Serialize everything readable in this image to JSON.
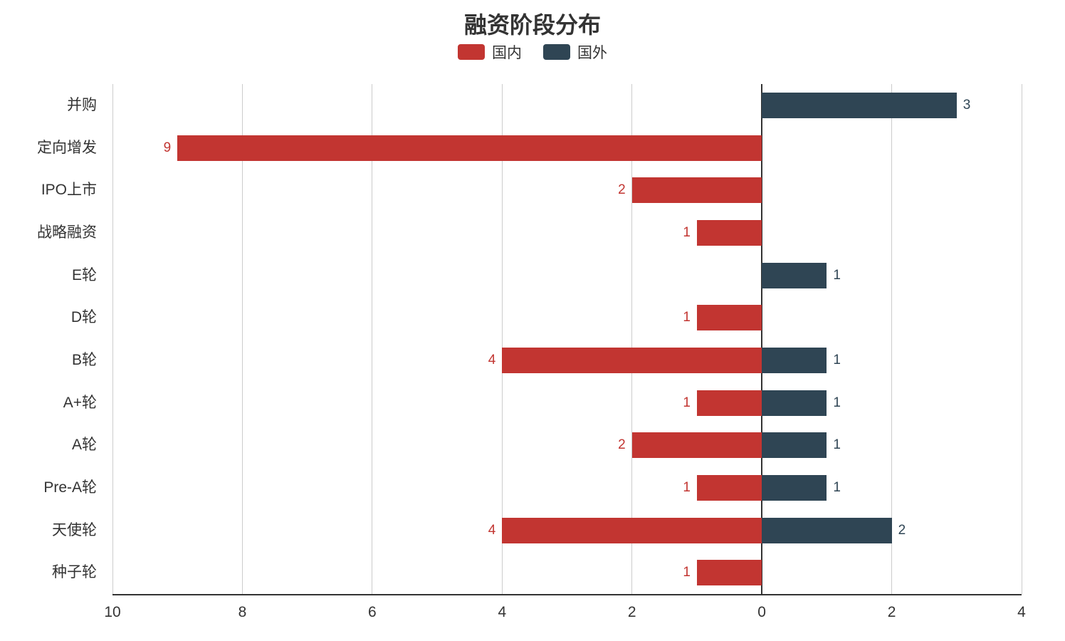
{
  "chart_data": {
    "type": "bar",
    "variant": "horizontal-diverging",
    "title": "融资阶段分布",
    "categories": [
      "并购",
      "定向增发",
      "IPO上市",
      "战略融资",
      "E轮",
      "D轮",
      "B轮",
      "A+轮",
      "A轮",
      "Pre-A轮",
      "天使轮",
      "种子轮"
    ],
    "series": [
      {
        "name": "国内",
        "color": "#c23531",
        "direction": "left",
        "values": [
          0,
          9,
          2,
          1,
          0,
          1,
          4,
          1,
          2,
          1,
          4,
          1
        ]
      },
      {
        "name": "国外",
        "color": "#2f4554",
        "direction": "right",
        "values": [
          3,
          0,
          0,
          0,
          1,
          0,
          1,
          1,
          1,
          1,
          2,
          0
        ]
      }
    ],
    "legend": [
      {
        "label": "国内",
        "color": "#c23531"
      },
      {
        "label": "国外",
        "color": "#2f4554"
      }
    ],
    "axis": {
      "left_max": 10,
      "right_max": 4,
      "ticks": [
        {
          "value": -10,
          "label": "10"
        },
        {
          "value": -8,
          "label": "8"
        },
        {
          "value": -6,
          "label": "6"
        },
        {
          "value": -4,
          "label": "4"
        },
        {
          "value": -2,
          "label": "2"
        },
        {
          "value": 0,
          "label": "0"
        },
        {
          "value": 2,
          "label": "2"
        },
        {
          "value": 4,
          "label": "4"
        }
      ]
    },
    "style": {
      "grid_line_color": "#cccccc",
      "axis_line_color": "#333333",
      "text_color": "#333333"
    },
    "show_value_labels": true,
    "legend_position": "top-center",
    "grid": true
  }
}
